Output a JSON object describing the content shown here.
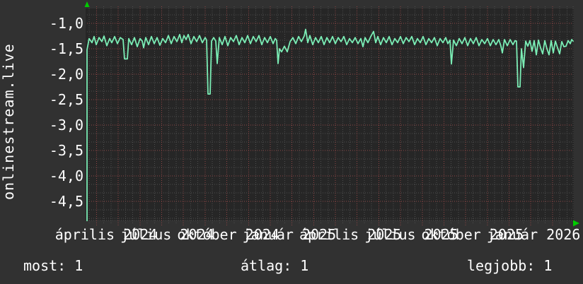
{
  "chart_data": {
    "type": "line",
    "title": "onlinestream.live",
    "x_labels": [
      "április 2024",
      "július 2024",
      "október 2024",
      "január 2025",
      "április 2025",
      "július 2025",
      "október 2025",
      "január 2026"
    ],
    "y_ticks": [
      "-1,0",
      "-1,5",
      "-2,0",
      "-2,5",
      "-3,0",
      "-3,5",
      "-4,0",
      "-4,5"
    ],
    "y_tick_values": [
      -1.0,
      -1.5,
      -2.0,
      -2.5,
      -3.0,
      -3.5,
      -4.0,
      -4.5
    ],
    "ylim": [
      -4.9,
      -0.65
    ],
    "grid": {
      "horizontal_minor_step": 0.1667,
      "vertical_red": "monthly",
      "vertical_gray": "10-day",
      "style": "dotted"
    },
    "legend_position": "none",
    "series": [
      {
        "name": "onlinestream.live",
        "color": "#7bedb5",
        "points": [
          [
            123,
            -4.88
          ],
          [
            123,
            -1.52
          ],
          [
            126,
            -1.3
          ],
          [
            130,
            -1.38
          ],
          [
            133,
            -1.26
          ],
          [
            136,
            -1.42
          ],
          [
            140,
            -1.28
          ],
          [
            144,
            -1.36
          ],
          [
            147,
            -1.25
          ],
          [
            151,
            -1.44
          ],
          [
            155,
            -1.3
          ],
          [
            158,
            -1.38
          ],
          [
            162,
            -1.26
          ],
          [
            166,
            -1.4
          ],
          [
            170,
            -1.28
          ],
          [
            174,
            -1.32
          ],
          [
            176,
            -1.7
          ],
          [
            180,
            -1.7
          ],
          [
            182,
            -1.3
          ],
          [
            186,
            -1.42
          ],
          [
            190,
            -1.28
          ],
          [
            194,
            -1.46
          ],
          [
            198,
            -1.3
          ],
          [
            201,
            -1.35
          ],
          [
            203,
            -1.48
          ],
          [
            206,
            -1.28
          ],
          [
            210,
            -1.42
          ],
          [
            214,
            -1.26
          ],
          [
            218,
            -1.4
          ],
          [
            222,
            -1.28
          ],
          [
            226,
            -1.43
          ],
          [
            230,
            -1.3
          ],
          [
            234,
            -1.38
          ],
          [
            238,
            -1.24
          ],
          [
            242,
            -1.4
          ],
          [
            246,
            -1.26
          ],
          [
            250,
            -1.36
          ],
          [
            254,
            -1.22
          ],
          [
            257,
            -1.38
          ],
          [
            260,
            -1.24
          ],
          [
            263,
            -1.32
          ],
          [
            266,
            -1.22
          ],
          [
            270,
            -1.4
          ],
          [
            274,
            -1.26
          ],
          [
            278,
            -1.36
          ],
          [
            282,
            -1.24
          ],
          [
            286,
            -1.38
          ],
          [
            290,
            -1.28
          ],
          [
            292,
            -1.33
          ],
          [
            294,
            -2.39
          ],
          [
            297,
            -2.39
          ],
          [
            299,
            -1.35
          ],
          [
            302,
            -1.28
          ],
          [
            305,
            -1.35
          ],
          [
            307,
            -1.79
          ],
          [
            310,
            -1.28
          ],
          [
            314,
            -1.42
          ],
          [
            318,
            -1.26
          ],
          [
            322,
            -1.44
          ],
          [
            326,
            -1.28
          ],
          [
            330,
            -1.36
          ],
          [
            334,
            -1.24
          ],
          [
            338,
            -1.42
          ],
          [
            342,
            -1.28
          ],
          [
            346,
            -1.38
          ],
          [
            350,
            -1.24
          ],
          [
            354,
            -1.4
          ],
          [
            358,
            -1.26
          ],
          [
            362,
            -1.36
          ],
          [
            366,
            -1.24
          ],
          [
            370,
            -1.42
          ],
          [
            374,
            -1.28
          ],
          [
            378,
            -1.38
          ],
          [
            382,
            -1.26
          ],
          [
            386,
            -1.4
          ],
          [
            389,
            -1.3
          ],
          [
            391,
            -1.33
          ],
          [
            393,
            -1.79
          ],
          [
            395,
            -1.5
          ],
          [
            398,
            -1.56
          ],
          [
            402,
            -1.45
          ],
          [
            406,
            -1.56
          ],
          [
            410,
            -1.36
          ],
          [
            414,
            -1.28
          ],
          [
            418,
            -1.4
          ],
          [
            422,
            -1.26
          ],
          [
            426,
            -1.36
          ],
          [
            430,
            -1.25
          ],
          [
            432,
            -1.12
          ],
          [
            435,
            -1.38
          ],
          [
            438,
            -1.24
          ],
          [
            442,
            -1.42
          ],
          [
            446,
            -1.28
          ],
          [
            450,
            -1.38
          ],
          [
            454,
            -1.26
          ],
          [
            458,
            -1.42
          ],
          [
            462,
            -1.28
          ],
          [
            466,
            -1.38
          ],
          [
            470,
            -1.26
          ],
          [
            474,
            -1.4
          ],
          [
            478,
            -1.28
          ],
          [
            482,
            -1.36
          ],
          [
            486,
            -1.26
          ],
          [
            490,
            -1.42
          ],
          [
            494,
            -1.3
          ],
          [
            498,
            -1.38
          ],
          [
            502,
            -1.28
          ],
          [
            506,
            -1.4
          ],
          [
            510,
            -1.3
          ],
          [
            513,
            -1.46
          ],
          [
            516,
            -1.28
          ],
          [
            520,
            -1.38
          ],
          [
            524,
            -1.26
          ],
          [
            528,
            -1.16
          ],
          [
            531,
            -1.38
          ],
          [
            534,
            -1.26
          ],
          [
            538,
            -1.42
          ],
          [
            542,
            -1.28
          ],
          [
            546,
            -1.38
          ],
          [
            550,
            -1.26
          ],
          [
            554,
            -1.42
          ],
          [
            558,
            -1.3
          ],
          [
            562,
            -1.38
          ],
          [
            566,
            -1.26
          ],
          [
            570,
            -1.4
          ],
          [
            574,
            -1.28
          ],
          [
            578,
            -1.36
          ],
          [
            582,
            -1.26
          ],
          [
            586,
            -1.42
          ],
          [
            590,
            -1.3
          ],
          [
            594,
            -1.38
          ],
          [
            598,
            -1.26
          ],
          [
            602,
            -1.42
          ],
          [
            606,
            -1.3
          ],
          [
            610,
            -1.38
          ],
          [
            614,
            -1.28
          ],
          [
            618,
            -1.44
          ],
          [
            622,
            -1.3
          ],
          [
            626,
            -1.38
          ],
          [
            630,
            -1.28
          ],
          [
            633,
            -1.4
          ],
          [
            636,
            -1.33
          ],
          [
            638,
            -1.8
          ],
          [
            641,
            -1.33
          ],
          [
            645,
            -1.44
          ],
          [
            649,
            -1.3
          ],
          [
            653,
            -1.4
          ],
          [
            657,
            -1.28
          ],
          [
            661,
            -1.44
          ],
          [
            665,
            -1.3
          ],
          [
            669,
            -1.4
          ],
          [
            673,
            -1.28
          ],
          [
            677,
            -1.44
          ],
          [
            681,
            -1.32
          ],
          [
            685,
            -1.4
          ],
          [
            689,
            -1.3
          ],
          [
            693,
            -1.44
          ],
          [
            697,
            -1.32
          ],
          [
            701,
            -1.42
          ],
          [
            705,
            -1.32
          ],
          [
            708,
            -1.45
          ],
          [
            710,
            -1.58
          ],
          [
            713,
            -1.32
          ],
          [
            717,
            -1.44
          ],
          [
            721,
            -1.32
          ],
          [
            725,
            -1.42
          ],
          [
            728,
            -1.34
          ],
          [
            730,
            -1.35
          ],
          [
            732,
            -2.25
          ],
          [
            735,
            -2.25
          ],
          [
            737,
            -1.5
          ],
          [
            740,
            -1.87
          ],
          [
            743,
            -1.35
          ],
          [
            746,
            -1.45
          ],
          [
            749,
            -1.34
          ],
          [
            752,
            -1.55
          ],
          [
            755,
            -1.34
          ],
          [
            758,
            -1.62
          ],
          [
            761,
            -1.33
          ],
          [
            764,
            -1.48
          ],
          [
            767,
            -1.6
          ],
          [
            770,
            -1.34
          ],
          [
            773,
            -1.5
          ],
          [
            776,
            -1.62
          ],
          [
            779,
            -1.34
          ],
          [
            782,
            -1.58
          ],
          [
            785,
            -1.35
          ],
          [
            788,
            -1.48
          ],
          [
            791,
            -1.6
          ],
          [
            794,
            -1.36
          ],
          [
            797,
            -1.46
          ],
          [
            800,
            -1.45
          ],
          [
            803,
            -1.34
          ],
          [
            806,
            -1.4
          ],
          [
            808,
            -1.32
          ],
          [
            810,
            -1.35
          ]
        ]
      }
    ]
  },
  "stats": {
    "most": "most: 1",
    "atlag": "átlag: 1",
    "legjobb": "legjobb: 1"
  },
  "colors": {
    "background": "#313131",
    "plot_background": "#262626",
    "grid_gray": "#4e4e4e",
    "grid_red": "#8f4545",
    "line": "#7bedb5",
    "arrow": "#00cc00",
    "text": "#ffffff"
  }
}
